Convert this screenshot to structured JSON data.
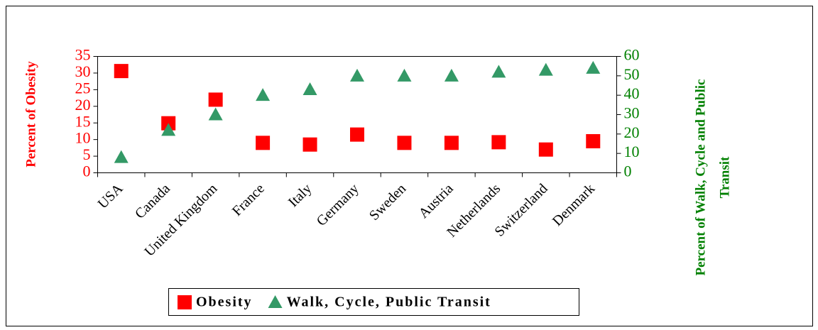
{
  "chart_data": {
    "type": "scatter",
    "categories": [
      "USA",
      "Canada",
      "United Kingdom",
      "France",
      "Italy",
      "Germany",
      "Sweden",
      "Austria",
      "Netherlands",
      "Switzerland",
      "Denmark"
    ],
    "ylabel": "Percent of Obesity",
    "y2label": [
      "Percent of Walk, Cycle and Public",
      "Transit"
    ],
    "ylim": [
      0,
      35
    ],
    "yticks": [
      0,
      5,
      10,
      15,
      20,
      25,
      30,
      35
    ],
    "y2lim": [
      0,
      60
    ],
    "y2ticks": [
      0,
      10,
      20,
      30,
      40,
      50,
      60
    ],
    "series": [
      {
        "name": "Obesity",
        "color": "#ff0000",
        "marker": "square",
        "values": [
          30.6,
          14.9,
          22,
          9,
          8.5,
          11.5,
          9,
          9,
          9.2,
          7,
          9.5
        ]
      },
      {
        "name": "Walk, Cycle, Public Transit",
        "color": "#339966",
        "marker": "triangle",
        "axis": "y2",
        "values": [
          8,
          22,
          30,
          40,
          43,
          50,
          50,
          50,
          52,
          53,
          54
        ]
      }
    ],
    "legend": "bottom"
  }
}
